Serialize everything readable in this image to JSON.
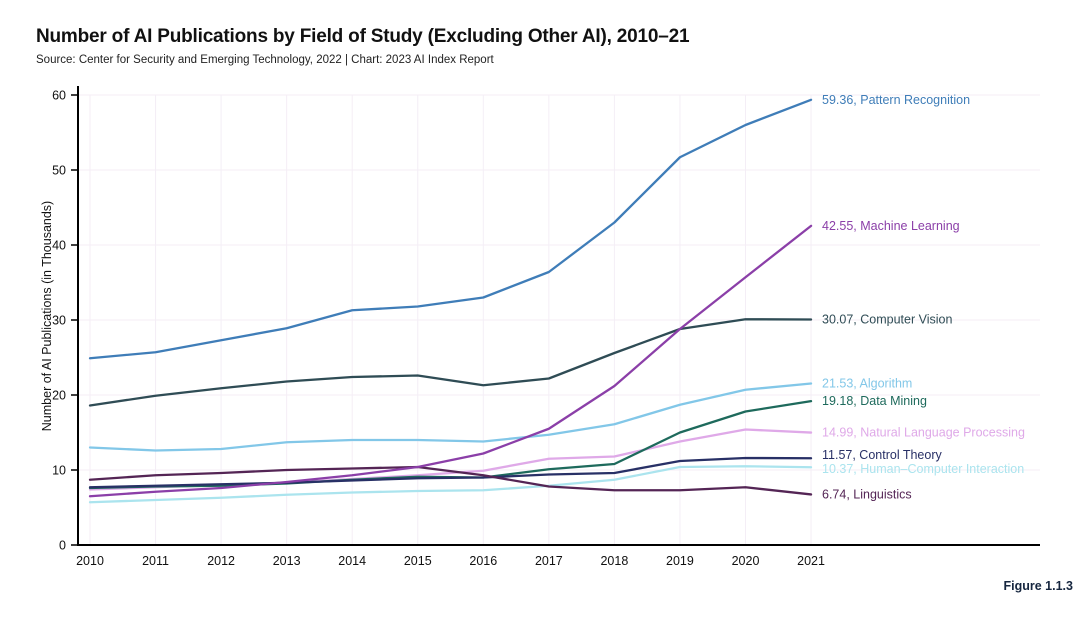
{
  "header": {
    "title": "Number of AI Publications by Field of Study (Excluding Other AI), 2010–21",
    "source": "Source: Center for Security and Emerging Technology, 2022 | Chart: 2023 AI Index Report"
  },
  "figure_caption": "Figure 1.1.3",
  "colors": {
    "axis": "#000000",
    "grid": "#f4eef6",
    "tick_text": "#111111",
    "caption": "#16263f"
  },
  "chart_data": {
    "type": "line",
    "title": "Number of AI Publications by Field of Study (Excluding Other AI), 2010–21",
    "xlabel": "",
    "ylabel": "Number of AI Publications (in Thousands)",
    "x": [
      2010,
      2011,
      2012,
      2013,
      2014,
      2015,
      2016,
      2017,
      2018,
      2019,
      2020,
      2021
    ],
    "ylim": [
      0,
      60
    ],
    "yticks": [
      0,
      10,
      20,
      30,
      40,
      50,
      60
    ],
    "grid": true,
    "legend_position": "right-end-labels",
    "series": [
      {
        "name": "Pattern Recognition",
        "color": "#3f7db8",
        "end_label": "59.36, Pattern Recognition",
        "values": [
          24.9,
          25.7,
          27.3,
          28.9,
          31.3,
          31.8,
          33.0,
          36.4,
          43.0,
          51.7,
          56.0,
          59.36
        ]
      },
      {
        "name": "Machine Learning",
        "color": "#8b3fa8",
        "end_label": "42.55, Machine Learning",
        "values": [
          6.5,
          7.1,
          7.6,
          8.4,
          9.3,
          10.4,
          12.2,
          15.5,
          21.2,
          28.8,
          35.7,
          42.55
        ]
      },
      {
        "name": "Computer Vision",
        "color": "#2f4c55",
        "end_label": "30.07, Computer Vision",
        "values": [
          18.6,
          19.9,
          20.9,
          21.8,
          22.4,
          22.6,
          21.3,
          22.2,
          25.6,
          28.8,
          30.1,
          30.07
        ]
      },
      {
        "name": "Algorithm",
        "color": "#82c7e8",
        "end_label": "21.53, Algorithm",
        "values": [
          13.0,
          12.6,
          12.8,
          13.7,
          14.0,
          14.0,
          13.8,
          14.7,
          16.1,
          18.7,
          20.7,
          21.53
        ]
      },
      {
        "name": "Data Mining",
        "color": "#1e6a5c",
        "end_label": "19.18, Data Mining",
        "values": [
          7.6,
          7.8,
          7.9,
          8.2,
          8.7,
          9.1,
          9.0,
          10.1,
          10.8,
          15.0,
          17.8,
          19.18
        ]
      },
      {
        "name": "Natural Language Processing",
        "color": "#dfa9e8",
        "end_label": "14.99, Natural Language Processing",
        "values": [
          7.4,
          7.7,
          8.0,
          8.3,
          8.8,
          9.3,
          9.9,
          11.5,
          11.8,
          13.8,
          15.4,
          14.99
        ]
      },
      {
        "name": "Control Theory",
        "color": "#283066",
        "end_label": "11.57, Control Theory",
        "values": [
          7.7,
          7.9,
          8.1,
          8.3,
          8.6,
          8.9,
          9.0,
          9.4,
          9.6,
          11.2,
          11.6,
          11.57
        ]
      },
      {
        "name": "Human–Computer Interaction",
        "color": "#abe4ee",
        "end_label": "10.37, Human–Computer Interaction",
        "values": [
          5.7,
          6.0,
          6.3,
          6.7,
          7.0,
          7.2,
          7.3,
          7.9,
          8.7,
          10.4,
          10.5,
          10.37
        ]
      },
      {
        "name": "Linguistics",
        "color": "#542555",
        "end_label": "6.74, Linguistics",
        "values": [
          8.7,
          9.3,
          9.6,
          10.0,
          10.2,
          10.4,
          9.3,
          7.8,
          7.3,
          7.3,
          7.7,
          6.74
        ]
      }
    ]
  }
}
